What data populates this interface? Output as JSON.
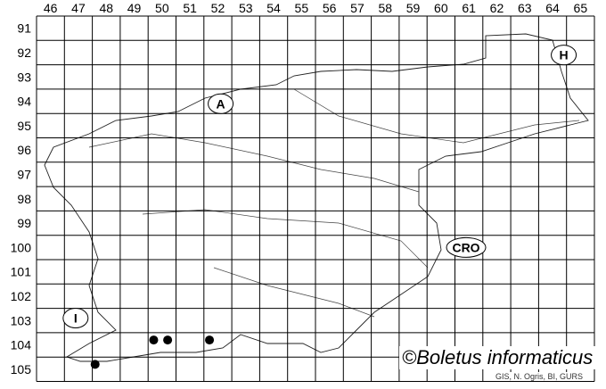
{
  "map": {
    "columns": [
      "46",
      "47",
      "48",
      "49",
      "50",
      "51",
      "52",
      "53",
      "54",
      "55",
      "56",
      "57",
      "58",
      "59",
      "60",
      "61",
      "62",
      "63",
      "64",
      "65"
    ],
    "rows": [
      "91",
      "92",
      "93",
      "94",
      "95",
      "96",
      "97",
      "98",
      "99",
      "100",
      "101",
      "102",
      "103",
      "104",
      "105"
    ],
    "country_labels": [
      {
        "text": "A",
        "col": 52.6,
        "row": 94.6
      },
      {
        "text": "H",
        "col": 64.9,
        "row": 92.6
      },
      {
        "text": "CRO",
        "col": 61.4,
        "row": 100.5
      },
      {
        "text": "I",
        "col": 47.4,
        "row": 103.4
      }
    ],
    "records": [
      {
        "col": 50.2,
        "row": 104.3
      },
      {
        "col": 50.7,
        "row": 104.3
      },
      {
        "col": 52.2,
        "row": 104.3
      },
      {
        "col": 48.1,
        "row": 105.3
      }
    ],
    "line_color": "#000000",
    "dot_color": "#000000"
  },
  "credit": "©Boletus informaticus",
  "source": "GIS, N. Ogris, BI, GURS"
}
